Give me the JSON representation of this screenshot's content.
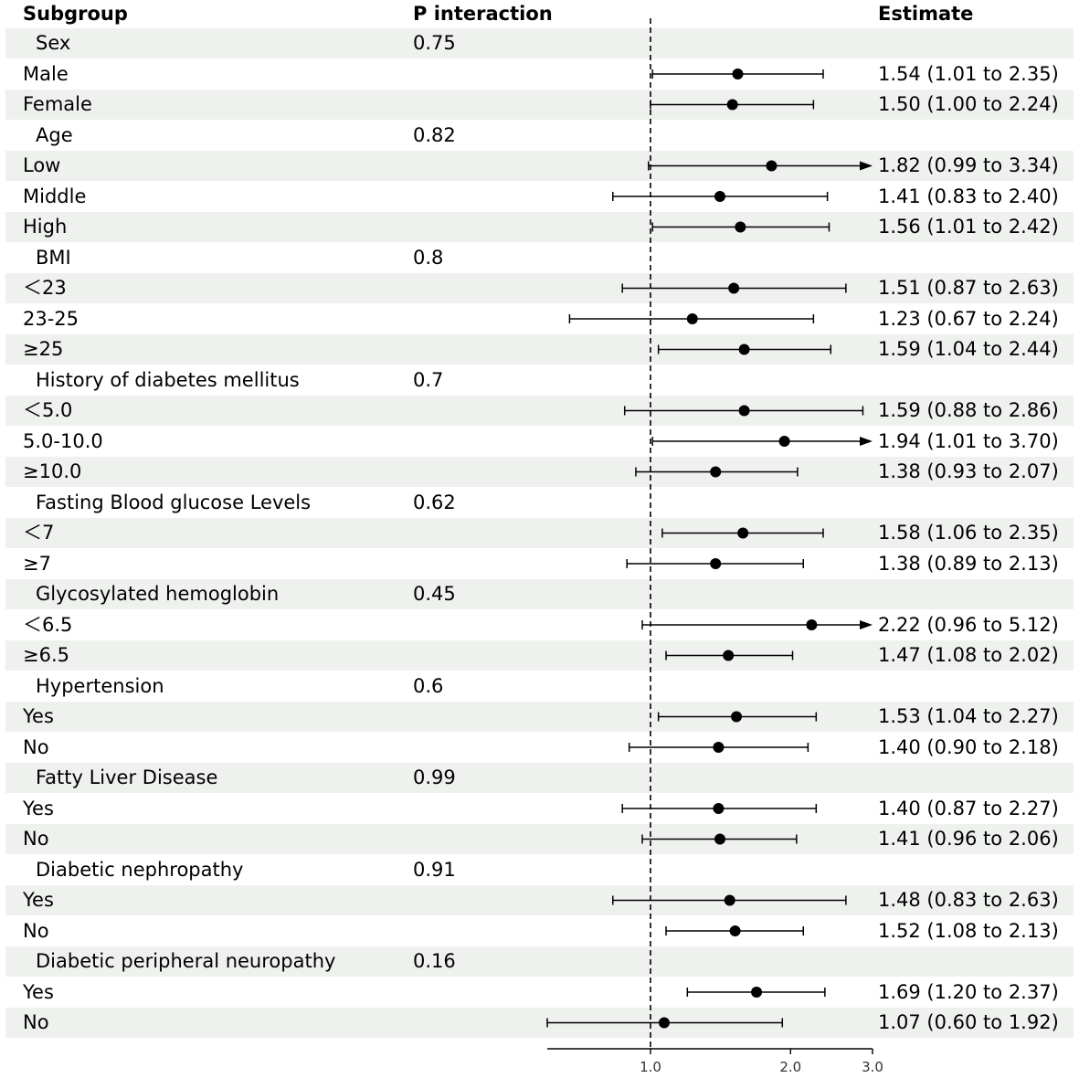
{
  "headers": {
    "subgroup": "Subgroup",
    "p_interaction": "P interaction",
    "estimate": "Estimate"
  },
  "rows": [
    {
      "label": "Sex",
      "group": true,
      "p": "0.75",
      "est": ""
    },
    {
      "label": "Male",
      "group": false,
      "p": "",
      "est": "1.54 (1.01 to 2.35)"
    },
    {
      "label": "Female",
      "group": false,
      "p": "",
      "est": "1.50 (1.00 to 2.24)"
    },
    {
      "label": "Age",
      "group": true,
      "p": "0.82",
      "est": ""
    },
    {
      "label": "Low",
      "group": false,
      "p": "",
      "est": "1.82 (0.99 to 3.34)"
    },
    {
      "label": "Middle",
      "group": false,
      "p": "",
      "est": "1.41 (0.83 to 2.40)"
    },
    {
      "label": "High",
      "group": false,
      "p": "",
      "est": "1.56 (1.01 to 2.42)"
    },
    {
      "label": "BMI",
      "group": true,
      "p": "0.8",
      "est": ""
    },
    {
      "label": "＜23",
      "group": false,
      "p": "",
      "est": "1.51 (0.87 to 2.63)"
    },
    {
      "label": "23-25",
      "group": false,
      "p": "",
      "est": "1.23 (0.67 to 2.24)"
    },
    {
      "label": "≥25",
      "group": false,
      "p": "",
      "est": "1.59 (1.04 to 2.44)"
    },
    {
      "label": "History of diabetes mellitus",
      "group": true,
      "p": "0.7",
      "est": ""
    },
    {
      "label": "＜5.0",
      "group": false,
      "p": "",
      "est": "1.59 (0.88 to 2.86)"
    },
    {
      "label": "5.0-10.0",
      "group": false,
      "p": "",
      "est": "1.94 (1.01 to 3.70)"
    },
    {
      "label": "≥10.0",
      "group": false,
      "p": "",
      "est": "1.38 (0.93 to 2.07)"
    },
    {
      "label": "Fasting Blood glucose Levels",
      "group": true,
      "p": "0.62",
      "est": ""
    },
    {
      "label": "＜7",
      "group": false,
      "p": "",
      "est": "1.58 (1.06 to 2.35)"
    },
    {
      "label": "≥7",
      "group": false,
      "p": "",
      "est": "1.38 (0.89 to 2.13)"
    },
    {
      "label": "Glycosylated hemoglobin",
      "group": true,
      "p": "0.45",
      "est": ""
    },
    {
      "label": "＜6.5",
      "group": false,
      "p": "",
      "est": "2.22 (0.96 to 5.12)"
    },
    {
      "label": "≥6.5",
      "group": false,
      "p": "",
      "est": "1.47 (1.08 to 2.02)"
    },
    {
      "label": "Hypertension",
      "group": true,
      "p": "0.6",
      "est": ""
    },
    {
      "label": "Yes",
      "group": false,
      "p": "",
      "est": "1.53 (1.04 to 2.27)"
    },
    {
      "label": "No",
      "group": false,
      "p": "",
      "est": "1.40 (0.90 to 2.18)"
    },
    {
      "label": "Fatty Liver Disease",
      "group": true,
      "p": "0.99",
      "est": ""
    },
    {
      "label": "Yes",
      "group": false,
      "p": "",
      "est": "1.40 (0.87 to 2.27)"
    },
    {
      "label": "No",
      "group": false,
      "p": "",
      "est": "1.41 (0.96 to 2.06)"
    },
    {
      "label": "Diabetic nephropathy",
      "group": true,
      "p": "0.91",
      "est": ""
    },
    {
      "label": "Yes",
      "group": false,
      "p": "",
      "est": "1.48 (0.83 to 2.63)"
    },
    {
      "label": "No",
      "group": false,
      "p": "",
      "est": "1.52 (1.08 to 2.13)"
    },
    {
      "label": "Diabetic peripheral neuropathy",
      "group": true,
      "p": "0.16",
      "est": ""
    },
    {
      "label": "Yes",
      "group": false,
      "p": "",
      "est": "1.69 (1.20 to 2.37)"
    },
    {
      "label": "No",
      "group": false,
      "p": "",
      "est": "1.07 (0.60 to 1.92)"
    }
  ],
  "chart_data": {
    "type": "forest",
    "x_scale": "log",
    "xlim": [
      0.6,
      3.0
    ],
    "x_ticks": [
      1.0,
      2.0,
      3.0
    ],
    "x_tick_labels": [
      "1.0",
      "2.0",
      "3.0"
    ],
    "reference_line": 1.0,
    "series": [
      {
        "name": "Male",
        "estimate": 1.54,
        "lower": 1.01,
        "upper": 2.35
      },
      {
        "name": "Female",
        "estimate": 1.5,
        "lower": 1.0,
        "upper": 2.24
      },
      {
        "name": "Low",
        "estimate": 1.82,
        "lower": 0.99,
        "upper": 3.34
      },
      {
        "name": "Middle",
        "estimate": 1.41,
        "lower": 0.83,
        "upper": 2.4
      },
      {
        "name": "High",
        "estimate": 1.56,
        "lower": 1.01,
        "upper": 2.42
      },
      {
        "name": "＜23",
        "estimate": 1.51,
        "lower": 0.87,
        "upper": 2.63
      },
      {
        "name": "23-25",
        "estimate": 1.23,
        "lower": 0.67,
        "upper": 2.24
      },
      {
        "name": "≥25",
        "estimate": 1.59,
        "lower": 1.04,
        "upper": 2.44
      },
      {
        "name": "＜5.0",
        "estimate": 1.59,
        "lower": 0.88,
        "upper": 2.86
      },
      {
        "name": "5.0-10.0",
        "estimate": 1.94,
        "lower": 1.01,
        "upper": 3.7
      },
      {
        "name": "≥10.0",
        "estimate": 1.38,
        "lower": 0.93,
        "upper": 2.07
      },
      {
        "name": "＜7",
        "estimate": 1.58,
        "lower": 1.06,
        "upper": 2.35
      },
      {
        "name": "≥7",
        "estimate": 1.38,
        "lower": 0.89,
        "upper": 2.13
      },
      {
        "name": "＜6.5",
        "estimate": 2.22,
        "lower": 0.96,
        "upper": 5.12
      },
      {
        "name": "≥6.5",
        "estimate": 1.47,
        "lower": 1.08,
        "upper": 2.02
      },
      {
        "name": "Hypertension Yes",
        "estimate": 1.53,
        "lower": 1.04,
        "upper": 2.27
      },
      {
        "name": "Hypertension No",
        "estimate": 1.4,
        "lower": 0.9,
        "upper": 2.18
      },
      {
        "name": "Fatty Liver Disease Yes",
        "estimate": 1.4,
        "lower": 0.87,
        "upper": 2.27
      },
      {
        "name": "Fatty Liver Disease No",
        "estimate": 1.41,
        "lower": 0.96,
        "upper": 2.06
      },
      {
        "name": "Diabetic nephropathy Yes",
        "estimate": 1.48,
        "lower": 0.83,
        "upper": 2.63
      },
      {
        "name": "Diabetic nephropathy No",
        "estimate": 1.52,
        "lower": 1.08,
        "upper": 2.13
      },
      {
        "name": "Diabetic peripheral neuropathy Yes",
        "estimate": 1.69,
        "lower": 1.2,
        "upper": 2.37
      },
      {
        "name": "Diabetic peripheral neuropathy No",
        "estimate": 1.07,
        "lower": 0.6,
        "upper": 1.92
      }
    ]
  }
}
